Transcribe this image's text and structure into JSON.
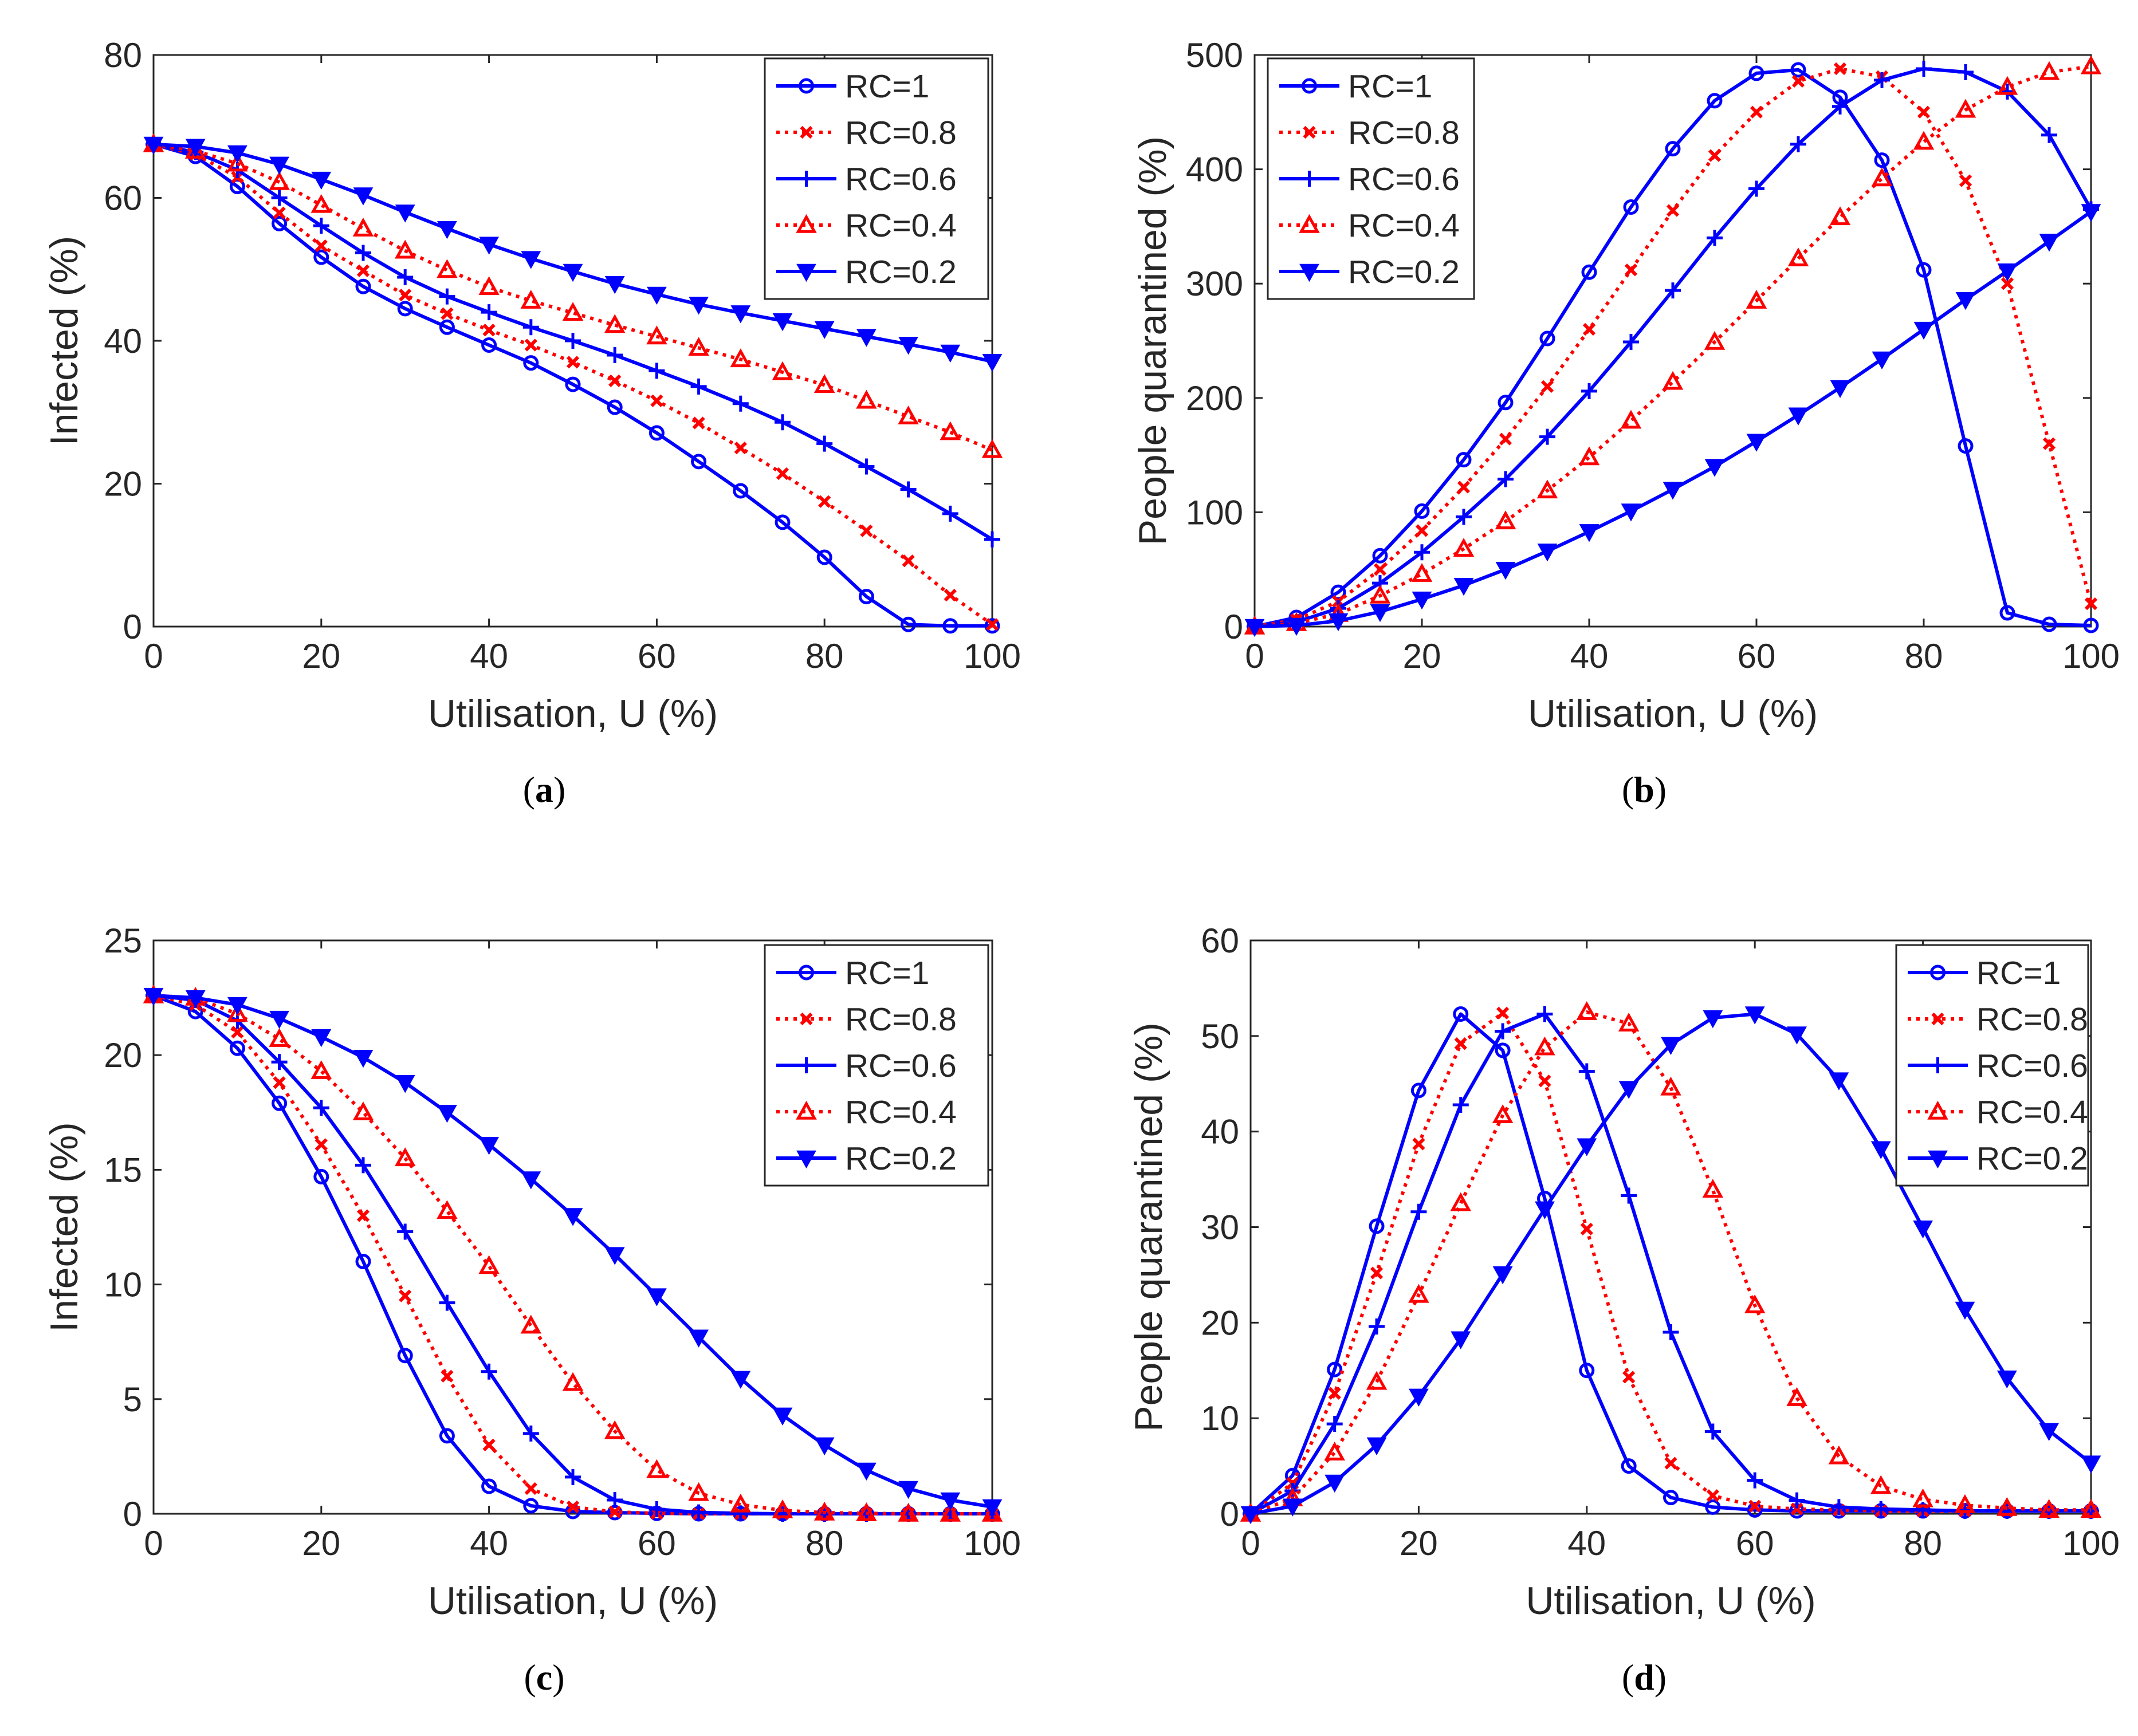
{
  "figure": {
    "colors": {
      "blue": "#0000ff",
      "red": "#ff0000",
      "axis": "#262626",
      "background": "#ffffff"
    },
    "legend_labels": [
      "RC=1",
      "RC=0.8",
      "RC=0.6",
      "RC=0.4",
      "RC=0.2"
    ]
  },
  "chart_data": [
    {
      "panel": "a",
      "caption_open": "(",
      "caption_letter": "a",
      "caption_close": ")",
      "type": "line",
      "title": "",
      "xlabel": "Utilisation, U (%)",
      "ylabel": "Infected (%)",
      "xlim": [
        0,
        100
      ],
      "ylim": [
        0,
        80
      ],
      "xticks": [
        0,
        20,
        40,
        60,
        80,
        100
      ],
      "yticks": [
        0,
        20,
        40,
        60,
        80
      ],
      "legend_position": "top-right",
      "x": [
        0,
        5,
        10,
        15,
        20,
        25,
        30,
        35,
        40,
        45,
        50,
        55,
        60,
        65,
        70,
        75,
        80,
        85,
        90,
        95,
        100
      ],
      "series": [
        {
          "name": "RC=1",
          "color": "blue",
          "style": "solid",
          "marker": "circle",
          "values": [
            67.5,
            65.8,
            61.6,
            56.4,
            51.7,
            47.6,
            44.5,
            41.9,
            39.4,
            36.9,
            33.9,
            30.7,
            27.1,
            23.1,
            19.0,
            14.6,
            9.7,
            4.2,
            0.3,
            0.1,
            0.1
          ]
        },
        {
          "name": "RC=0.8",
          "color": "red",
          "style": "dotted",
          "marker": "x",
          "values": [
            67.5,
            66.1,
            62.9,
            57.9,
            53.3,
            49.8,
            46.4,
            43.8,
            41.5,
            39.4,
            37.0,
            34.4,
            31.6,
            28.5,
            25.0,
            21.4,
            17.5,
            13.4,
            9.2,
            4.4,
            0.3
          ]
        },
        {
          "name": "RC=0.6",
          "color": "blue",
          "style": "solid",
          "marker": "plus",
          "values": [
            67.5,
            66.4,
            63.9,
            60.0,
            56.1,
            52.3,
            48.9,
            46.2,
            44.0,
            41.9,
            40.0,
            38.0,
            35.8,
            33.6,
            31.2,
            28.6,
            25.6,
            22.4,
            19.2,
            15.8,
            12.2
          ]
        },
        {
          "name": "RC=0.4",
          "color": "red",
          "style": "dotted",
          "marker": "triangle-up",
          "values": [
            67.5,
            66.6,
            64.8,
            62.2,
            59.0,
            55.7,
            52.6,
            49.9,
            47.5,
            45.6,
            43.9,
            42.2,
            40.6,
            39.0,
            37.4,
            35.6,
            33.8,
            31.6,
            29.4,
            27.2,
            24.7
          ]
        },
        {
          "name": "RC=0.2",
          "color": "blue",
          "style": "solid",
          "marker": "triangle-down",
          "values": [
            67.5,
            67.2,
            66.3,
            64.7,
            62.6,
            60.4,
            58.0,
            55.7,
            53.5,
            51.5,
            49.7,
            48.0,
            46.5,
            45.1,
            43.9,
            42.8,
            41.7,
            40.6,
            39.5,
            38.4,
            37.1
          ]
        }
      ]
    },
    {
      "panel": "b",
      "caption_open": "(",
      "caption_letter": "b",
      "caption_close": ")",
      "type": "line",
      "title": "",
      "xlabel": "Utilisation, U (%)",
      "ylabel": "People quarantined (%)",
      "xlim": [
        0,
        100
      ],
      "ylim": [
        0,
        500
      ],
      "xticks": [
        0,
        20,
        40,
        60,
        80,
        100
      ],
      "yticks": [
        0,
        100,
        200,
        300,
        400,
        500
      ],
      "legend_position": "top-left",
      "x": [
        0,
        5,
        10,
        15,
        20,
        25,
        30,
        35,
        40,
        45,
        50,
        55,
        60,
        65,
        70,
        75,
        80,
        85,
        90,
        95,
        100
      ],
      "series": [
        {
          "name": "RC=1",
          "color": "blue",
          "style": "solid",
          "marker": "circle",
          "values": [
            0,
            8,
            30,
            62,
            101,
            146,
            196,
            252,
            310,
            367,
            418,
            460,
            484,
            487,
            463,
            408,
            312,
            158,
            12,
            2,
            1
          ]
        },
        {
          "name": "RC=0.8",
          "color": "red",
          "style": "dotted",
          "marker": "x",
          "values": [
            0,
            6,
            22,
            50,
            84,
            122,
            164,
            210,
            260,
            312,
            364,
            412,
            450,
            477,
            488,
            481,
            450,
            390,
            300,
            160,
            20
          ]
        },
        {
          "name": "RC=0.6",
          "color": "blue",
          "style": "solid",
          "marker": "plus",
          "values": [
            0,
            4,
            16,
            38,
            65,
            96,
            129,
            166,
            206,
            249,
            294,
            340,
            383,
            422,
            455,
            478,
            488,
            485,
            468,
            430,
            365
          ]
        },
        {
          "name": "RC=0.4",
          "color": "red",
          "style": "dotted",
          "marker": "triangle-up",
          "values": [
            0,
            3,
            11,
            27,
            46,
            68,
            92,
            119,
            148,
            180,
            214,
            249,
            285,
            322,
            358,
            392,
            424,
            452,
            472,
            485,
            490
          ]
        },
        {
          "name": "RC=0.2",
          "color": "blue",
          "style": "solid",
          "marker": "triangle-down",
          "values": [
            0,
            1,
            5,
            13,
            24,
            36,
            50,
            66,
            83,
            101,
            120,
            140,
            162,
            185,
            209,
            234,
            260,
            286,
            311,
            337,
            363
          ]
        }
      ]
    },
    {
      "panel": "c",
      "caption_open": "(",
      "caption_letter": "c",
      "caption_close": ")",
      "type": "line",
      "title": "",
      "xlabel": "Utilisation, U (%)",
      "ylabel": "Infected (%)",
      "xlim": [
        0,
        100
      ],
      "ylim": [
        0,
        25
      ],
      "xticks": [
        0,
        20,
        40,
        60,
        80,
        100
      ],
      "yticks": [
        0,
        5,
        10,
        15,
        20,
        25
      ],
      "legend_position": "top-right",
      "x": [
        0,
        5,
        10,
        15,
        20,
        25,
        30,
        35,
        40,
        45,
        50,
        55,
        60,
        65,
        70,
        75,
        80,
        85,
        90,
        95,
        100
      ],
      "series": [
        {
          "name": "RC=1",
          "color": "blue",
          "style": "solid",
          "marker": "circle",
          "values": [
            22.6,
            21.9,
            20.3,
            17.9,
            14.7,
            11.0,
            6.9,
            3.4,
            1.2,
            0.35,
            0.1,
            0.05,
            0.02,
            0,
            0,
            0,
            0,
            0,
            0,
            0,
            0
          ]
        },
        {
          "name": "RC=0.8",
          "color": "red",
          "style": "dotted",
          "marker": "x",
          "values": [
            22.6,
            22.2,
            21.0,
            18.8,
            16.1,
            13.0,
            9.5,
            6.0,
            3.0,
            1.1,
            0.3,
            0.08,
            0.02,
            0,
            0,
            0,
            0,
            0,
            0,
            0,
            0
          ]
        },
        {
          "name": "RC=0.6",
          "color": "blue",
          "style": "solid",
          "marker": "plus",
          "values": [
            22.6,
            22.4,
            21.5,
            19.7,
            17.7,
            15.2,
            12.3,
            9.2,
            6.2,
            3.5,
            1.6,
            0.6,
            0.2,
            0.06,
            0.02,
            0,
            0,
            0,
            0,
            0,
            0
          ]
        },
        {
          "name": "RC=0.4",
          "color": "red",
          "style": "dotted",
          "marker": "triangle-up",
          "values": [
            22.6,
            22.5,
            21.8,
            20.7,
            19.3,
            17.5,
            15.5,
            13.2,
            10.8,
            8.2,
            5.7,
            3.6,
            1.9,
            0.9,
            0.4,
            0.15,
            0.05,
            0.02,
            0,
            0,
            0
          ]
        },
        {
          "name": "RC=0.2",
          "color": "blue",
          "style": "solid",
          "marker": "triangle-down",
          "values": [
            22.6,
            22.5,
            22.2,
            21.6,
            20.8,
            19.9,
            18.8,
            17.5,
            16.1,
            14.6,
            13.0,
            11.3,
            9.5,
            7.7,
            5.9,
            4.3,
            3.0,
            1.9,
            1.1,
            0.6,
            0.3
          ]
        }
      ]
    },
    {
      "panel": "d",
      "caption_open": "(",
      "caption_letter": "d",
      "caption_close": ")",
      "type": "line",
      "title": "",
      "xlabel": "Utilisation, U (%)",
      "ylabel": "People quarantined (%)",
      "xlim": [
        0,
        100
      ],
      "ylim": [
        0,
        60
      ],
      "xticks": [
        0,
        20,
        40,
        60,
        80,
        100
      ],
      "yticks": [
        0,
        10,
        20,
        30,
        40,
        50,
        60
      ],
      "legend_position": "top-right",
      "x": [
        0,
        5,
        10,
        15,
        20,
        25,
        30,
        35,
        40,
        45,
        50,
        55,
        60,
        65,
        70,
        75,
        80,
        85,
        90,
        95,
        100
      ],
      "series": [
        {
          "name": "RC=1",
          "color": "blue",
          "style": "solid",
          "marker": "circle",
          "values": [
            0,
            4.0,
            15.1,
            30.1,
            44.3,
            52.3,
            48.5,
            33.0,
            15.0,
            5.0,
            1.7,
            0.7,
            0.4,
            0.3,
            0.3,
            0.3,
            0.3,
            0.3,
            0.3,
            0.3,
            0.3
          ]
        },
        {
          "name": "RC=0.8",
          "color": "red",
          "style": "dotted",
          "marker": "x",
          "values": [
            0,
            3.2,
            12.6,
            25.2,
            38.7,
            49.2,
            52.4,
            45.3,
            29.8,
            14.3,
            5.3,
            1.9,
            0.8,
            0.5,
            0.4,
            0.3,
            0.3,
            0.3,
            0.3,
            0.3,
            0.3
          ]
        },
        {
          "name": "RC=0.6",
          "color": "blue",
          "style": "solid",
          "marker": "plus",
          "values": [
            0,
            2.4,
            9.4,
            19.6,
            31.6,
            42.8,
            50.5,
            52.3,
            46.3,
            33.3,
            19.0,
            8.6,
            3.5,
            1.4,
            0.7,
            0.5,
            0.4,
            0.3,
            0.3,
            0.3,
            0.3
          ]
        },
        {
          "name": "RC=0.4",
          "color": "red",
          "style": "dotted",
          "marker": "triangle-up",
          "values": [
            0,
            1.6,
            6.4,
            13.8,
            22.9,
            32.5,
            41.7,
            48.8,
            52.5,
            51.3,
            44.6,
            33.9,
            21.8,
            12.1,
            6.0,
            2.9,
            1.5,
            0.9,
            0.6,
            0.4,
            0.4
          ]
        },
        {
          "name": "RC=0.2",
          "color": "blue",
          "style": "solid",
          "marker": "triangle-down",
          "values": [
            0,
            0.8,
            3.3,
            7.2,
            12.3,
            18.3,
            25.1,
            31.9,
            38.5,
            44.5,
            49.1,
            51.9,
            52.3,
            50.2,
            45.4,
            38.2,
            29.9,
            21.4,
            14.2,
            8.7,
            5.3
          ]
        }
      ]
    }
  ]
}
